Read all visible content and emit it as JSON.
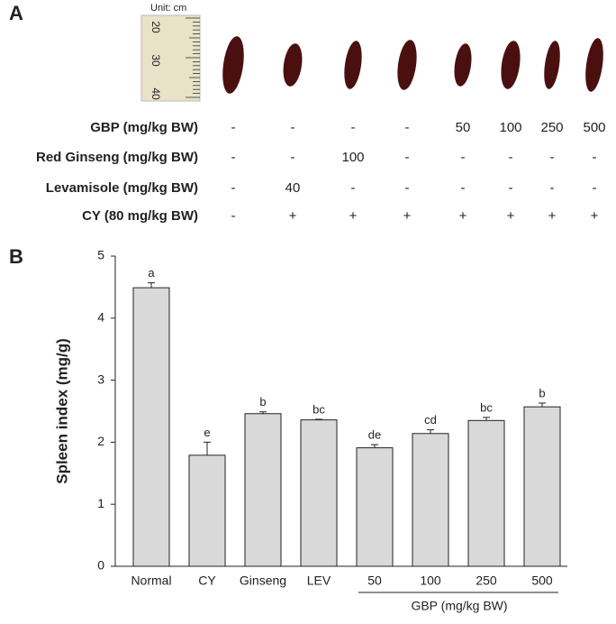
{
  "panel_a": {
    "label": "A",
    "ruler_unit": "Unit: cm",
    "ruler_numbers": [
      "20",
      "30",
      "40"
    ],
    "rows": [
      {
        "label": "GBP (mg/kg BW)",
        "cells": [
          "-",
          "-",
          "-",
          "-",
          "50",
          "100",
          "250",
          "500"
        ]
      },
      {
        "label": "Red Ginseng (mg/kg BW)",
        "cells": [
          "-",
          "-",
          "100",
          "-",
          "-",
          "-",
          "-",
          "-"
        ]
      },
      {
        "label": "Levamisole (mg/kg BW)",
        "cells": [
          "-",
          "40",
          "-",
          "-",
          "-",
          "-",
          "-",
          "-"
        ]
      },
      {
        "label": "CY (80 mg/kg BW)",
        "cells": [
          "-",
          "+",
          "+",
          "+",
          "+",
          "+",
          "+",
          "+"
        ]
      }
    ]
  },
  "chart_data": {
    "panel_label": "B",
    "type": "bar",
    "ylabel": "Spleen index (mg/g)",
    "categories": [
      "Normal",
      "CY",
      "Ginseng",
      "LEV",
      "50",
      "100",
      "250",
      "500"
    ],
    "group_label": "GBP (mg/kg BW)",
    "values": [
      4.49,
      1.79,
      2.46,
      2.36,
      1.91,
      2.14,
      2.35,
      2.57
    ],
    "errors": [
      0.08,
      0.21,
      0.03,
      0.01,
      0.05,
      0.06,
      0.05,
      0.06
    ],
    "significance_labels": [
      "a",
      "e",
      "b",
      "bc",
      "de",
      "cd",
      "bc",
      "b"
    ],
    "color": "#d9d9d9",
    "ylim": [
      0,
      5
    ],
    "yticks": [
      0,
      1,
      2,
      3,
      4,
      5
    ]
  }
}
